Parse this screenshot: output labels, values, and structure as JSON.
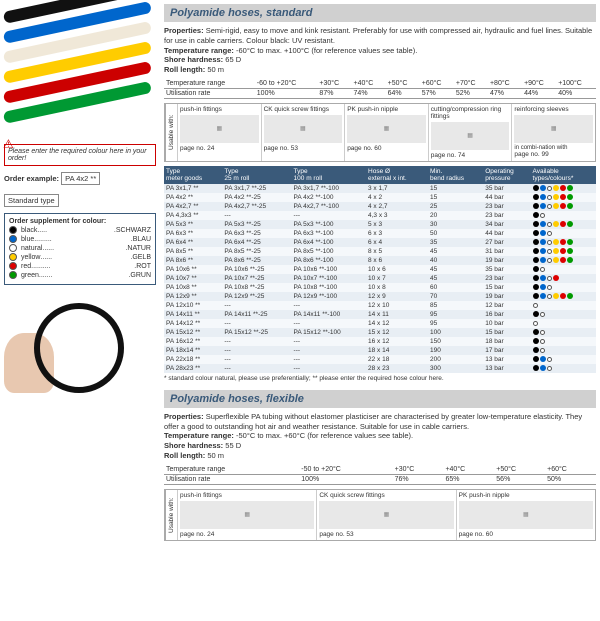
{
  "section1": {
    "title": "Polyamide hoses, standard",
    "props_label": "Properties:",
    "props_text": "Semi-rigid, easy to move and kink resistant. Preferably for use with compressed air, hydraulic and fuel lines. Suitable for use in cable carriers. Colour black: UV resistant.",
    "temp_label": "Temperature range:",
    "temp_text": "-60°C to max. +100°C (for reference values see table).",
    "shore_label": "Shore hardness:",
    "shore_val": "65 D",
    "roll_label": "Roll length:",
    "roll_val": "50 m",
    "temp_table": {
      "row1_label": "Temperature range",
      "row1": [
        "-60 to +20°C",
        "+30°C",
        "+40°C",
        "+50°C",
        "+60°C",
        "+70°C",
        "+80°C",
        "+90°C",
        "+100°C"
      ],
      "row2_label": "Utilisation rate",
      "row2": [
        "100%",
        "87%",
        "74%",
        "64%",
        "57%",
        "52%",
        "47%",
        "44%",
        "40%"
      ]
    },
    "fittings_side": "Usable with:",
    "fittings": [
      {
        "name": "push-in fittings",
        "page": "24"
      },
      {
        "name": "CK quick screw fittings",
        "page": "53"
      },
      {
        "name": "PK push-in nipple",
        "page": "60"
      },
      {
        "name": "cutting/compression ring fittings",
        "page": "74"
      },
      {
        "name": "reinforcing sleeves",
        "extra": "in combi-nation with",
        "page": "99"
      }
    ],
    "page_label": "page no.",
    "headers": [
      "Type\nmeter goods",
      "Type\n25 m roll",
      "Type\n100 m roll",
      "Hose Ø\nexternal x int.",
      "Min.\nbend radius",
      "Operating\npressure",
      "Available\ntypes/colours*"
    ],
    "rows": [
      [
        "PA 3x1,7 **",
        "PA 3x1,7 **-25",
        "PA 3x1,7 **-100",
        "3 x 1,7",
        "15",
        "35 bar",
        [
          "#000",
          "#06c",
          "ring",
          "#fc0",
          "#d00",
          "#090"
        ]
      ],
      [
        "PA 4x2 **",
        "PA 4x2 **-25",
        "PA 4x2 **-100",
        "4 x 2",
        "15",
        "44 bar",
        [
          "#000",
          "#06c",
          "ring",
          "#fc0",
          "#d00",
          "#090"
        ]
      ],
      [
        "PA 4x2,7 **",
        "PA 4x2,7 **-25",
        "PA 4x2,7 **-100",
        "4 x 2,7",
        "25",
        "23 bar",
        [
          "#000",
          "#06c",
          "ring",
          "#fc0",
          "#d00",
          "#090"
        ]
      ],
      [
        "PA 4,3x3 **",
        "---",
        "---",
        "4,3 x 3",
        "20",
        "23 bar",
        [
          "#000",
          "ring"
        ]
      ],
      [
        "PA 5x3 **",
        "PA 5x3 **-25",
        "PA 5x3 **-100",
        "5 x 3",
        "30",
        "34 bar",
        [
          "#000",
          "#06c",
          "ring",
          "#fc0",
          "#d00",
          "#090"
        ]
      ],
      [
        "PA 6x3 **",
        "PA 6x3 **-25",
        "PA 6x3 **-100",
        "6 x 3",
        "50",
        "44 bar",
        [
          "#000",
          "#06c",
          "ring"
        ]
      ],
      [
        "PA 6x4 **",
        "PA 6x4 **-25",
        "PA 6x4 **-100",
        "6 x 4",
        "35",
        "27 bar",
        [
          "#000",
          "#06c",
          "ring",
          "#fc0",
          "#d00",
          "#090"
        ]
      ],
      [
        "PA 8x5 **",
        "PA 8x5 **-25",
        "PA 8x5 **-100",
        "8 x 5",
        "45",
        "31 bar",
        [
          "#000",
          "#06c",
          "ring",
          "#fc0",
          "#d00",
          "#090"
        ]
      ],
      [
        "PA 8x6 **",
        "PA 8x6 **-25",
        "PA 8x6 **-100",
        "8 x 6",
        "40",
        "19 bar",
        [
          "#000",
          "#06c",
          "ring",
          "#fc0",
          "#d00",
          "#090"
        ]
      ],
      [
        "PA 10x6 **",
        "PA 10x6 **-25",
        "PA 10x6 **-100",
        "10 x 6",
        "45",
        "35 bar",
        [
          "#000",
          "ring"
        ]
      ],
      [
        "PA 10x7 **",
        "PA 10x7 **-25",
        "PA 10x7 **-100",
        "10 x 7",
        "45",
        "23 bar",
        [
          "#000",
          "#06c",
          "ring",
          "#d00"
        ]
      ],
      [
        "PA 10x8 **",
        "PA 10x8 **-25",
        "PA 10x8 **-100",
        "10 x 8",
        "60",
        "15 bar",
        [
          "#000",
          "#06c",
          "ring"
        ]
      ],
      [
        "PA 12x9 **",
        "PA 12x9 **-25",
        "PA 12x9 **-100",
        "12 x 9",
        "70",
        "19 bar",
        [
          "#000",
          "#06c",
          "ring",
          "#fc0",
          "#d00",
          "#090"
        ]
      ],
      [
        "PA 12x10 **",
        "---",
        "---",
        "12 x 10",
        "85",
        "12 bar",
        [
          "ring"
        ]
      ],
      [
        "PA 14x11 **",
        "PA 14x11 **-25",
        "PA 14x11 **-100",
        "14 x 11",
        "95",
        "16 bar",
        [
          "#000",
          "ring"
        ]
      ],
      [
        "PA 14x12 **",
        "---",
        "---",
        "14 x 12",
        "95",
        "10 bar",
        [
          "ring"
        ]
      ],
      [
        "PA 15x12 **",
        "PA 15x12 **-25",
        "PA 15x12 **-100",
        "15 x 12",
        "100",
        "15 bar",
        [
          "#000",
          "ring"
        ]
      ],
      [
        "PA 16x12 **",
        "---",
        "---",
        "16 x 12",
        "150",
        "18 bar",
        [
          "#000",
          "ring"
        ]
      ],
      [
        "PA 18x14 **",
        "---",
        "---",
        "18 x 14",
        "190",
        "17 bar",
        [
          "#000",
          "ring"
        ]
      ],
      [
        "PA 22x18 **",
        "---",
        "---",
        "22 x 18",
        "200",
        "13 bar",
        [
          "#000",
          "#06c",
          "ring"
        ]
      ],
      [
        "PA 28x23 **",
        "---",
        "---",
        "28 x 23",
        "300",
        "13 bar",
        [
          "#000",
          "#06c",
          "ring"
        ]
      ]
    ],
    "footnote": "* standard colour natural, please use preferentially; ** please enter the required hose colour here."
  },
  "section2": {
    "title": "Polyamide hoses, flexible",
    "props_label": "Properties:",
    "props_text": "Superflexible PA tubing without elastomer plasticiser are characterised by greater low-temperature elasticity. They offer a good to outstanding hot air and weather resistance. Suitable for use in cable carriers.",
    "temp_label": "Temperature range:",
    "temp_text": "-50°C to max. +60°C (for reference values see table).",
    "shore_label": "Shore hardness:",
    "shore_val": "55 D",
    "roll_label": "Roll length:",
    "roll_val": "50 m",
    "temp_table": {
      "row1_label": "Temperature range",
      "row1": [
        "-50 to +20°C",
        "+30°C",
        "+40°C",
        "+50°C",
        "+60°C"
      ],
      "row2_label": "Utilisation rate",
      "row2": [
        "100%",
        "76%",
        "65%",
        "56%",
        "50%"
      ]
    },
    "fittings_side": "Usable with:",
    "fittings": [
      {
        "name": "push-in fittings",
        "page": "24"
      },
      {
        "name": "CK quick screw fittings",
        "page": "53"
      },
      {
        "name": "PK push-in nipple",
        "page": "60"
      }
    ],
    "page_label": "page no."
  },
  "left": {
    "warn_text": "Please enter the required colour here in your order!",
    "order_ex_label": "Order example:",
    "order_ex_val": "PA 4x2 **",
    "order_std": "Standard type",
    "color_hdr": "Order supplement for colour:",
    "colors": [
      {
        "c": "#000",
        "en": "black",
        "dots": ".....",
        "de": "SCHWARZ"
      },
      {
        "c": "#06c",
        "en": "blue",
        "dots": ".........",
        "de": "BLAU"
      },
      {
        "c": "#fff",
        "en": "natural",
        "dots": "......",
        "de": "NATUR",
        "ring": true
      },
      {
        "c": "#fc0",
        "en": "yellow",
        "dots": "......",
        "de": "GELB"
      },
      {
        "c": "#d00",
        "en": "red",
        "dots": "..........",
        "de": "ROT"
      },
      {
        "c": "#090",
        "en": "green",
        "dots": ".......",
        "de": "GRUN"
      }
    ],
    "hose_colors": [
      "#111",
      "#0066cc",
      "#f0e8d8",
      "#ffcc00",
      "#cc0000",
      "#009933"
    ]
  }
}
